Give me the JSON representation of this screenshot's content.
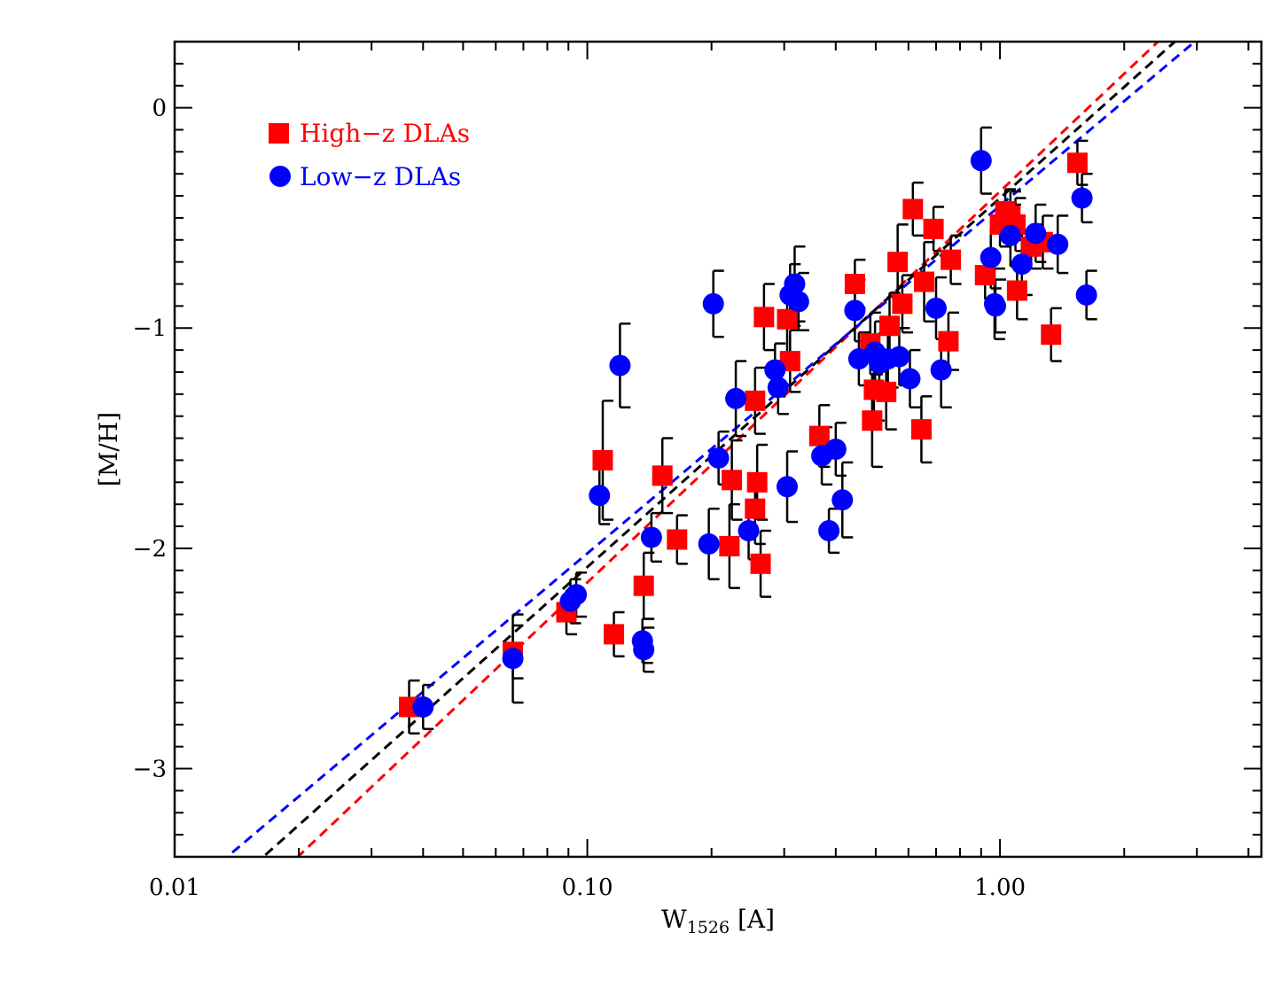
{
  "chart_data": {
    "type": "scatter",
    "xscale": "log",
    "xlim": [
      0.01,
      4.3
    ],
    "ylim": [
      -3.4,
      0.3
    ],
    "xlabel": {
      "main": "W",
      "sub": "1526",
      "unit": " [A]"
    },
    "ylabel": "[M/H]",
    "xticks": [
      {
        "value": 0.01,
        "label": "0.01"
      },
      {
        "value": 0.1,
        "label": "0.10"
      },
      {
        "value": 1.0,
        "label": "1.00"
      }
    ],
    "yticks": [
      {
        "value": 0,
        "label": "0"
      },
      {
        "value": -1,
        "label": "−1"
      },
      {
        "value": -2,
        "label": "−2"
      },
      {
        "value": -3,
        "label": "−3"
      }
    ],
    "grid": false,
    "legend_position": "top-left",
    "series": [
      {
        "name": "High−z DLAs",
        "marker": "square",
        "color": "#ff0000",
        "points": [
          {
            "x": 0.037,
            "y": -2.72,
            "err": 0.12
          },
          {
            "x": 0.066,
            "y": -2.47,
            "err": 0.12
          },
          {
            "x": 0.089,
            "y": -2.29,
            "err": 0.1
          },
          {
            "x": 0.109,
            "y": -1.6,
            "err": 0.27
          },
          {
            "x": 0.116,
            "y": -2.39,
            "err": 0.1
          },
          {
            "x": 0.137,
            "y": -2.17,
            "err": 0.15
          },
          {
            "x": 0.152,
            "y": -1.67,
            "err": 0.17
          },
          {
            "x": 0.165,
            "y": -1.96,
            "err": 0.11
          },
          {
            "x": 0.221,
            "y": -1.99,
            "err": 0.19
          },
          {
            "x": 0.224,
            "y": -1.69,
            "err": 0.18
          },
          {
            "x": 0.255,
            "y": -1.33,
            "err": 0.15
          },
          {
            "x": 0.258,
            "y": -1.7,
            "err": 0.17
          },
          {
            "x": 0.255,
            "y": -1.82,
            "err": 0.16
          },
          {
            "x": 0.263,
            "y": -2.07,
            "err": 0.15
          },
          {
            "x": 0.268,
            "y": -0.95,
            "err": 0.15
          },
          {
            "x": 0.305,
            "y": -0.96,
            "err": 0.15
          },
          {
            "x": 0.31,
            "y": -1.15,
            "err": 0.14
          },
          {
            "x": 0.365,
            "y": -1.49,
            "err": 0.14
          },
          {
            "x": 0.445,
            "y": -0.8,
            "err": 0.11
          },
          {
            "x": 0.485,
            "y": -1.07,
            "err": 0.14
          },
          {
            "x": 0.495,
            "y": -1.28,
            "err": 0.14
          },
          {
            "x": 0.49,
            "y": -1.42,
            "err": 0.21
          },
          {
            "x": 0.53,
            "y": -1.29,
            "err": 0.17
          },
          {
            "x": 0.54,
            "y": -0.99,
            "err": 0.15
          },
          {
            "x": 0.565,
            "y": -0.7,
            "err": 0.17
          },
          {
            "x": 0.58,
            "y": -0.89,
            "err": 0.13
          },
          {
            "x": 0.615,
            "y": -0.46,
            "err": 0.12
          },
          {
            "x": 0.645,
            "y": -1.46,
            "err": 0.15
          },
          {
            "x": 0.655,
            "y": -0.79,
            "err": 0.18
          },
          {
            "x": 0.69,
            "y": -0.55,
            "err": 0.1
          },
          {
            "x": 0.75,
            "y": -1.06,
            "err": 0.13
          },
          {
            "x": 0.76,
            "y": -0.69,
            "err": 0.11
          },
          {
            "x": 0.92,
            "y": -0.76,
            "err": 0.11
          },
          {
            "x": 1.0,
            "y": -0.53,
            "err": 0.1
          },
          {
            "x": 1.03,
            "y": -0.47,
            "err": 0.1
          },
          {
            "x": 1.06,
            "y": -0.49,
            "err": 0.11
          },
          {
            "x": 1.09,
            "y": -0.53,
            "err": 0.12
          },
          {
            "x": 1.1,
            "y": -0.83,
            "err": 0.13
          },
          {
            "x": 1.19,
            "y": -0.63,
            "err": 0.1
          },
          {
            "x": 1.27,
            "y": -0.61,
            "err": 0.12
          },
          {
            "x": 1.33,
            "y": -1.03,
            "err": 0.12
          },
          {
            "x": 1.54,
            "y": -0.25,
            "err": 0.1
          }
        ]
      },
      {
        "name": "Low−z DLAs",
        "marker": "circle",
        "color": "#0000ff",
        "points": [
          {
            "x": 0.04,
            "y": -2.72,
            "err": 0.1
          },
          {
            "x": 0.066,
            "y": -2.5,
            "err": 0.2
          },
          {
            "x": 0.091,
            "y": -2.24,
            "err": 0.1
          },
          {
            "x": 0.094,
            "y": -2.21,
            "err": 0.1
          },
          {
            "x": 0.107,
            "y": -1.76,
            "err": 0.13
          },
          {
            "x": 0.12,
            "y": -1.17,
            "err": 0.19
          },
          {
            "x": 0.136,
            "y": -2.42,
            "err": 0.1
          },
          {
            "x": 0.137,
            "y": -2.46,
            "err": 0.1
          },
          {
            "x": 0.143,
            "y": -1.95,
            "err": 0.11
          },
          {
            "x": 0.197,
            "y": -1.98,
            "err": 0.16
          },
          {
            "x": 0.202,
            "y": -0.89,
            "err": 0.15
          },
          {
            "x": 0.208,
            "y": -1.59,
            "err": 0.12
          },
          {
            "x": 0.229,
            "y": -1.32,
            "err": 0.17
          },
          {
            "x": 0.246,
            "y": -1.92,
            "err": 0.13
          },
          {
            "x": 0.285,
            "y": -1.19,
            "err": 0.12
          },
          {
            "x": 0.29,
            "y": -1.27,
            "err": 0.12
          },
          {
            "x": 0.305,
            "y": -1.72,
            "err": 0.16
          },
          {
            "x": 0.31,
            "y": -0.85,
            "err": 0.14
          },
          {
            "x": 0.318,
            "y": -0.8,
            "err": 0.17
          },
          {
            "x": 0.325,
            "y": -0.88,
            "err": 0.13
          },
          {
            "x": 0.37,
            "y": -1.58,
            "err": 0.13
          },
          {
            "x": 0.385,
            "y": -1.92,
            "err": 0.1
          },
          {
            "x": 0.4,
            "y": -1.55,
            "err": 0.12
          },
          {
            "x": 0.415,
            "y": -1.78,
            "err": 0.17
          },
          {
            "x": 0.445,
            "y": -0.92,
            "err": 0.14
          },
          {
            "x": 0.455,
            "y": -1.14,
            "err": 0.12
          },
          {
            "x": 0.498,
            "y": -1.11,
            "err": 0.14
          },
          {
            "x": 0.51,
            "y": -1.16,
            "err": 0.14
          },
          {
            "x": 0.535,
            "y": -1.14,
            "err": 0.13
          },
          {
            "x": 0.57,
            "y": -1.13,
            "err": 0.13
          },
          {
            "x": 0.605,
            "y": -1.23,
            "err": 0.13
          },
          {
            "x": 0.7,
            "y": -0.91,
            "err": 0.14
          },
          {
            "x": 0.72,
            "y": -1.19,
            "err": 0.17
          },
          {
            "x": 0.9,
            "y": -0.24,
            "err": 0.15
          },
          {
            "x": 0.95,
            "y": -0.68,
            "err": 0.14
          },
          {
            "x": 0.97,
            "y": -0.89,
            "err": 0.16
          },
          {
            "x": 0.975,
            "y": -0.9,
            "err": 0.12
          },
          {
            "x": 1.06,
            "y": -0.58,
            "err": 0.14
          },
          {
            "x": 1.13,
            "y": -0.71,
            "err": 0.14
          },
          {
            "x": 1.22,
            "y": -0.57,
            "err": 0.13
          },
          {
            "x": 1.38,
            "y": -0.62,
            "err": 0.13
          },
          {
            "x": 1.58,
            "y": -0.41,
            "err": 0.11
          },
          {
            "x": 1.62,
            "y": -0.85,
            "err": 0.11
          }
        ]
      }
    ],
    "fit_lines": [
      {
        "color": "#ff0000",
        "slope": 1.775,
        "intercept": -0.38
      },
      {
        "color": "#000000",
        "slope": 1.675,
        "intercept": -0.41
      },
      {
        "color": "#0000ff",
        "slope": 1.578,
        "intercept": -0.445
      }
    ]
  }
}
